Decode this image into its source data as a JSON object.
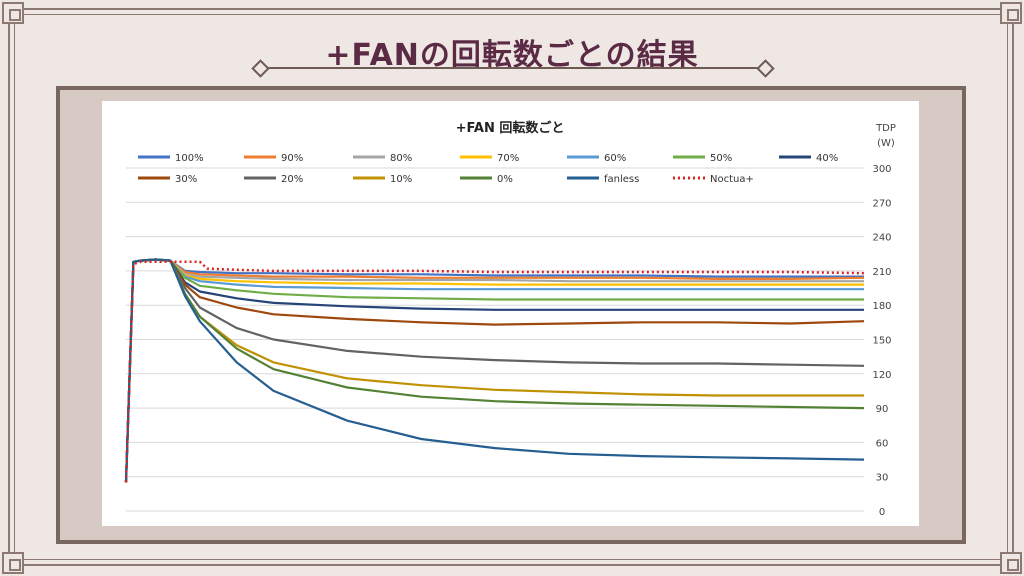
{
  "slide": {
    "title": "+FANの回転数ごとの結果"
  },
  "chart_data": {
    "type": "line",
    "title": "+FAN 回転数ごと",
    "ylabel_line1": "TDP",
    "ylabel_line2": "(W)",
    "ylim": [
      0,
      300
    ],
    "yticks": [
      0,
      30,
      60,
      90,
      120,
      150,
      180,
      210,
      240,
      270,
      300
    ],
    "y_axis_position": "right",
    "grid": true,
    "legend_position": "top",
    "x_range": [
      0,
      100
    ],
    "series": [
      {
        "name": "100%",
        "color": "#4472c4",
        "style": "solid",
        "x": [
          0,
          1,
          2,
          4,
          6,
          8,
          10,
          15,
          20,
          30,
          40,
          50,
          60,
          70,
          80,
          90,
          100
        ],
        "y": [
          25,
          218,
          219,
          220,
          219,
          210,
          209,
          208,
          208,
          207,
          207,
          206,
          206,
          206,
          205,
          205,
          205
        ]
      },
      {
        "name": "90%",
        "color": "#ed7d31",
        "style": "solid",
        "x": [
          0,
          1,
          2,
          4,
          6,
          8,
          10,
          15,
          20,
          30,
          40,
          50,
          60,
          70,
          80,
          90,
          100
        ],
        "y": [
          25,
          218,
          219,
          220,
          219,
          209,
          207,
          206,
          205,
          205,
          204,
          204,
          204,
          204,
          203,
          203,
          204
        ]
      },
      {
        "name": "80%",
        "color": "#a5a5a5",
        "style": "solid",
        "x": [
          0,
          1,
          2,
          4,
          6,
          8,
          10,
          15,
          20,
          30,
          40,
          50,
          60,
          70,
          80,
          90,
          100
        ],
        "y": [
          25,
          218,
          219,
          220,
          219,
          207,
          205,
          204,
          203,
          202,
          202,
          202,
          201,
          201,
          201,
          201,
          201
        ]
      },
      {
        "name": "70%",
        "color": "#ffc000",
        "style": "solid",
        "x": [
          0,
          1,
          2,
          4,
          6,
          8,
          10,
          15,
          20,
          30,
          40,
          50,
          60,
          70,
          80,
          90,
          100
        ],
        "y": [
          25,
          218,
          219,
          220,
          219,
          206,
          203,
          201,
          200,
          199,
          199,
          198,
          198,
          198,
          198,
          198,
          198
        ]
      },
      {
        "name": "60%",
        "color": "#5b9bd5",
        "style": "solid",
        "x": [
          0,
          1,
          2,
          4,
          6,
          8,
          10,
          15,
          20,
          30,
          40,
          50,
          60,
          70,
          80,
          90,
          100
        ],
        "y": [
          25,
          218,
          219,
          220,
          219,
          205,
          201,
          198,
          196,
          195,
          194,
          194,
          194,
          194,
          194,
          194,
          194
        ]
      },
      {
        "name": "50%",
        "color": "#70ad47",
        "style": "solid",
        "x": [
          0,
          1,
          2,
          4,
          6,
          8,
          10,
          15,
          20,
          30,
          40,
          50,
          60,
          70,
          80,
          90,
          100
        ],
        "y": [
          25,
          218,
          219,
          220,
          219,
          204,
          197,
          193,
          190,
          187,
          186,
          185,
          185,
          185,
          185,
          185,
          185
        ]
      },
      {
        "name": "40%",
        "color": "#264478",
        "style": "solid",
        "x": [
          0,
          1,
          2,
          4,
          6,
          8,
          10,
          15,
          20,
          30,
          40,
          50,
          60,
          70,
          80,
          90,
          100
        ],
        "y": [
          25,
          218,
          219,
          220,
          219,
          200,
          192,
          186,
          182,
          179,
          177,
          176,
          176,
          176,
          176,
          176,
          176
        ]
      },
      {
        "name": "30%",
        "color": "#9e480e",
        "style": "solid",
        "x": [
          0,
          1,
          2,
          4,
          6,
          8,
          10,
          15,
          20,
          30,
          40,
          50,
          60,
          70,
          80,
          90,
          100
        ],
        "y": [
          25,
          218,
          219,
          220,
          219,
          198,
          187,
          178,
          172,
          168,
          165,
          163,
          164,
          165,
          165,
          164,
          166
        ]
      },
      {
        "name": "20%",
        "color": "#636363",
        "style": "solid",
        "x": [
          0,
          1,
          2,
          4,
          6,
          8,
          10,
          15,
          20,
          30,
          40,
          50,
          60,
          70,
          80,
          90,
          100
        ],
        "y": [
          25,
          218,
          219,
          220,
          219,
          195,
          178,
          160,
          150,
          140,
          135,
          132,
          130,
          129,
          129,
          128,
          127
        ]
      },
      {
        "name": "10%",
        "color": "#c09100",
        "style": "solid",
        "x": [
          0,
          1,
          2,
          4,
          6,
          8,
          10,
          15,
          20,
          30,
          40,
          50,
          60,
          70,
          80,
          90,
          100
        ],
        "y": [
          25,
          218,
          219,
          220,
          219,
          190,
          170,
          145,
          130,
          116,
          110,
          106,
          104,
          102,
          101,
          101,
          101
        ]
      },
      {
        "name": "0%",
        "color": "#548235",
        "style": "solid",
        "x": [
          0,
          1,
          2,
          4,
          6,
          8,
          10,
          15,
          20,
          30,
          40,
          50,
          60,
          70,
          80,
          90,
          100
        ],
        "y": [
          25,
          218,
          219,
          220,
          219,
          190,
          170,
          142,
          124,
          108,
          100,
          96,
          94,
          93,
          92,
          91,
          90
        ]
      },
      {
        "name": "fanless",
        "color": "#255e91",
        "style": "solid",
        "x": [
          0,
          1,
          2,
          4,
          6,
          8,
          10,
          15,
          20,
          30,
          40,
          50,
          60,
          70,
          80,
          90,
          100
        ],
        "y": [
          25,
          218,
          219,
          220,
          219,
          188,
          166,
          130,
          105,
          79,
          63,
          55,
          50,
          48,
          47,
          46,
          45
        ]
      },
      {
        "name": "Noctua+",
        "color": "#e02020",
        "style": "dotted",
        "x": [
          0,
          1,
          2,
          4,
          6,
          8,
          10,
          11,
          15,
          20,
          30,
          40,
          50,
          60,
          70,
          80,
          90,
          100
        ],
        "y": [
          25,
          216,
          218,
          218,
          218,
          218,
          218,
          212,
          211,
          210,
          210,
          210,
          209,
          209,
          209,
          209,
          209,
          208
        ]
      }
    ]
  }
}
